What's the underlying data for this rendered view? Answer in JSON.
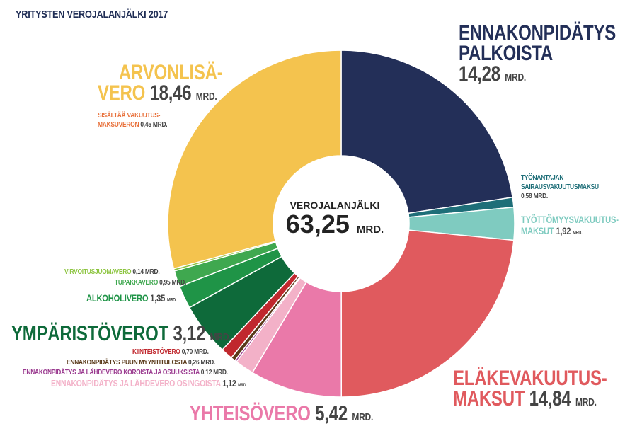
{
  "title": "YRITYSTEN VEROJALANJÄLKI 2017",
  "center": {
    "label": "VEROJALANJÄLKI",
    "value": "63,25",
    "unit": "MRD."
  },
  "chart_data": {
    "type": "pie",
    "title": "YRITYSTEN VEROJALANJÄLKI 2017",
    "total": 63.25,
    "unit": "MRD.",
    "slices": [
      {
        "label": "ENNAKONPIDÄTYS PALKOISTA",
        "value": 14.28,
        "color": "#232f58"
      },
      {
        "label": "TYÖNANTAJAN SAIRAUSVAKUUTUSMAKSU",
        "value": 0.58,
        "color": "#1e6e78"
      },
      {
        "label": "TYÖTTÖMYYSVAKUUTUSMAKSUT",
        "value": 1.92,
        "color": "#7fcbc0"
      },
      {
        "label": "ELÄKEVAKUUTUSMAKSUT",
        "value": 14.84,
        "color": "#e05a5e"
      },
      {
        "label": "YHTEISÖVERO",
        "value": 5.42,
        "color": "#ea79a9"
      },
      {
        "label": "ENNAKONPIDÄTYS JA LÄHDEVERO OSINGOISTA",
        "value": 1.12,
        "color": "#f3b1c8"
      },
      {
        "label": "ENNAKONPIDÄTYS JA LÄHDEVERO KOROISTA JA OSUUKSISTA",
        "value": 0.12,
        "color": "#9a3a8f"
      },
      {
        "label": "ENNAKONPIDÄTYS PUUN MYYNTITULOSTA",
        "value": 0.26,
        "color": "#5a3a1a"
      },
      {
        "label": "KIINTEISTÖVERO",
        "value": 0.7,
        "color": "#c0282e"
      },
      {
        "label": "YMPÄRISTÖVEROT",
        "value": 3.12,
        "color": "#0e6a3a"
      },
      {
        "label": "ALKOHOLIVERO",
        "value": 1.35,
        "color": "#1f9447"
      },
      {
        "label": "TUPAKKAVERO",
        "value": 0.95,
        "color": "#3fa84f"
      },
      {
        "label": "VIRVOITUSJUOMAVERO",
        "value": 0.14,
        "color": "#8cc43f"
      },
      {
        "label": "ARVONLISÄVERO",
        "value": 18.46,
        "color": "#f4c34e"
      }
    ]
  },
  "labels": {
    "ennakonpidatys_line1": "ENNAKONPIDÄTYS",
    "ennakonpidatys_line2": "PALKOISTA",
    "ennakonpidatys_value": "14,28",
    "sairaus_line1": "TYÖNANTAJAN",
    "sairaus_line2": "SAIRAUSVAKUUTUSMAKSU",
    "sairaus_value": "0,58",
    "tyottomyys_line1": "TYÖTTÖMYYSVAKUUTUS-",
    "tyottomyys_line2": "MAKSUT",
    "tyottomyys_value": "1,92",
    "elake_line1": "ELÄKEVAKUUTUS-",
    "elake_line2": "MAKSUT",
    "elake_value": "14,84",
    "yhteiso_name": "YHTEISÖVERO",
    "yhteiso_value": "5,42",
    "osingot_name": "ENNAKONPIDÄTYS JA LÄHDEVERO OSINGOISTA",
    "osingot_value": "1,12",
    "korot_name": "ENNAKONPIDÄTYS JA LÄHDEVERO KOROISTA JA OSUUKSISTA",
    "korot_value": "0,12",
    "puu_name": "ENNAKONPIDÄTYS PUUN MYYNTITULOSTA",
    "puu_value": "0,26",
    "kiinteisto_name": "KIINTEISTÖVERO",
    "kiinteisto_value": "0,70",
    "ymparisto_name": "YMPÄRISTÖVEROT",
    "ymparisto_value": "3,12",
    "alkoholi_name": "ALKOHOLIVERO",
    "alkoholi_value": "1,35",
    "tupakka_name": "TUPAKKAVERO",
    "tupakka_value": "0,95",
    "virvoitus_name": "VIRVOITUSJUOMAVERO",
    "virvoitus_value": "0,14",
    "alv_line1": "ARVONLISÄ-",
    "alv_line2": "VERO",
    "alv_value": "18,46",
    "alv_note_line1": "SISÄLTÄÄ VAKUUTUS-",
    "alv_note_line2": "MAKSUVERON",
    "alv_note_value": "0,45",
    "unit": "MRD."
  }
}
